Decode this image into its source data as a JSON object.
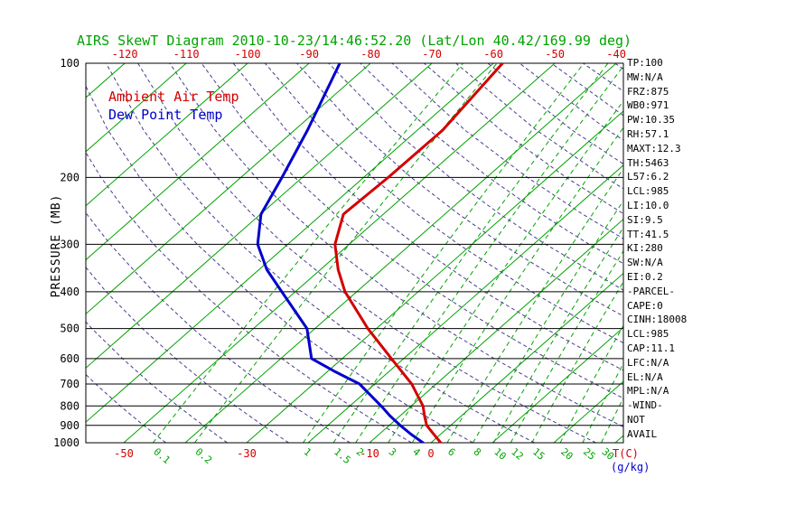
{
  "title": "AIRS SkewT Diagram 2010-10-23/14:46:52.20 (Lat/Lon 40.42/169.99 deg)",
  "colors": {
    "temp": "#d40000",
    "dew": "#0000cc",
    "isotherm": "#00a300",
    "mixing": "#00a300",
    "dry_adiabat": "#483d8b",
    "title": "#00a300",
    "axis": "#000000"
  },
  "side_panel": {
    "items": [
      "TP:100",
      "MW:N/A",
      "FRZ:875",
      "WB0:971",
      "PW:10.35",
      "RH:57.1",
      "MAXT:12.3",
      "TH:5463",
      "L57:6.2",
      "LCL:985",
      "LI:10.0",
      "SI:9.5",
      "TT:41.5",
      "KI:280",
      "SW:N/A",
      "EI:0.2",
      "-PARCEL-",
      "CAPE:0",
      "CINH:18008",
      "LCL:985",
      "CAP:11.1",
      "LFC:N/A",
      "EL:N/A",
      "MPL:N/A",
      "-WIND-",
      "NOT",
      "AVAIL"
    ]
  },
  "chart_data": {
    "type": "line",
    "title": "AIRS SkewT Diagram 2010-10-23/14:46:52.20 (Lat/Lon 40.42/169.99 deg)",
    "ylabel": "PRESSURE (MB)",
    "xlabel": "T(C)",
    "x2label": "(g/kg)",
    "y_scale": "log",
    "pressure_ticks_mb": [
      100,
      200,
      300,
      400,
      500,
      600,
      700,
      800,
      900,
      1000
    ],
    "top_temp_ticks_c": [
      -120,
      -110,
      -100,
      -90,
      -80,
      -70,
      -60,
      -50,
      -40
    ],
    "bottom_temp_ticks_c": [
      -50,
      -30,
      -10,
      0
    ],
    "mixing_ratio_ticks_g_kg": [
      0.1,
      0.2,
      1,
      1.5,
      2,
      3,
      4,
      6,
      8,
      10,
      12,
      15,
      20,
      25,
      30
    ],
    "isotherm_range_c": [
      -140,
      40
    ],
    "isotherm_step_c": 10,
    "dry_adiabat_range_k": [
      230,
      450
    ],
    "dry_adiabat_step_k": 10,
    "series": [
      {
        "name": "Ambient Air Temp",
        "color": "#d40000",
        "points_p_t": [
          [
            1000,
            1.6
          ],
          [
            950,
            -1.1
          ],
          [
            900,
            -3.9
          ],
          [
            850,
            -6.0
          ],
          [
            800,
            -8.1
          ],
          [
            700,
            -14.0
          ],
          [
            600,
            -22.0
          ],
          [
            500,
            -31.4
          ],
          [
            400,
            -41.9
          ],
          [
            350,
            -47.1
          ],
          [
            300,
            -52.3
          ],
          [
            250,
            -56.5
          ],
          [
            200,
            -56.0
          ],
          [
            150,
            -55.9
          ],
          [
            100,
            -58.5
          ]
        ]
      },
      {
        "name": "Dew Point Temp",
        "color": "#0000cc",
        "points_p_t": [
          [
            1000,
            -1.3
          ],
          [
            950,
            -4.8
          ],
          [
            900,
            -8.2
          ],
          [
            850,
            -11.6
          ],
          [
            800,
            -14.9
          ],
          [
            700,
            -22.5
          ],
          [
            650,
            -28.7
          ],
          [
            600,
            -35.0
          ],
          [
            500,
            -41.3
          ],
          [
            400,
            -52.2
          ],
          [
            350,
            -58.7
          ],
          [
            300,
            -64.9
          ],
          [
            250,
            -69.9
          ],
          [
            200,
            -73.3
          ],
          [
            150,
            -77.9
          ],
          [
            100,
            -85.0
          ]
        ]
      }
    ]
  }
}
